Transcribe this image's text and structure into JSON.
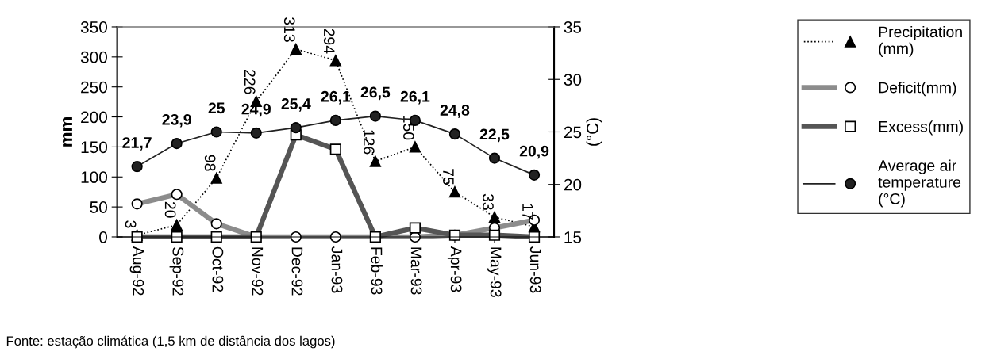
{
  "chart_data": {
    "type": "line",
    "categories": [
      "Aug-92",
      "Sep-92",
      "Oct-92",
      "Nov-92",
      "Dec-92",
      "Jan-93",
      "Feb-93",
      "Mar-93",
      "Apr-93",
      "May-93",
      "Jun-93"
    ],
    "ylabel": "mm",
    "y2label": "(°C)",
    "ylim": [
      0,
      350
    ],
    "yticks": [
      0,
      50,
      100,
      150,
      200,
      250,
      300,
      350
    ],
    "y2lim": [
      15,
      35
    ],
    "y2ticks": [
      15,
      20,
      25,
      30,
      35
    ],
    "legend": "right",
    "grid": false,
    "series": [
      {
        "name": "Precipitation (mm)",
        "color": "#000000",
        "marker": "triangle",
        "line_style": "dotted",
        "values": [
          3,
          20,
          98,
          226,
          313,
          294,
          126,
          150,
          75,
          33,
          17
        ],
        "value_labels": [
          "3",
          "20",
          "98",
          "226",
          "313",
          "294",
          "126",
          "150",
          "75",
          "33",
          "17"
        ]
      },
      {
        "name": "Deficit(mm)",
        "color": "#8c8c8c",
        "marker": "circle",
        "line_style": "solid",
        "values": [
          55,
          71,
          22,
          0,
          0,
          0,
          0,
          0,
          3,
          15,
          28
        ]
      },
      {
        "name": "Excess(mm)",
        "color": "#555555",
        "marker": "square",
        "line_style": "solid",
        "values": [
          0,
          0,
          0,
          0,
          170,
          146,
          0,
          15,
          3,
          3,
          0
        ]
      },
      {
        "name": "Average air temperature (°C)",
        "color": "#222222",
        "marker": "circle",
        "line_style": "solid",
        "axis": "y2",
        "values": [
          21.7,
          23.9,
          25,
          24.9,
          25.4,
          26.1,
          26.5,
          26.1,
          24.8,
          22.5,
          20.9
        ],
        "value_labels": [
          "21,7",
          "23,9",
          "25",
          "24,9",
          "25,4",
          "26,1",
          "26,5",
          "26,1",
          "24,8",
          "22,5",
          "20,9"
        ]
      }
    ],
    "annotations": [
      "Fonte: estação climática (1,5 km de distância dos lagos)"
    ]
  }
}
